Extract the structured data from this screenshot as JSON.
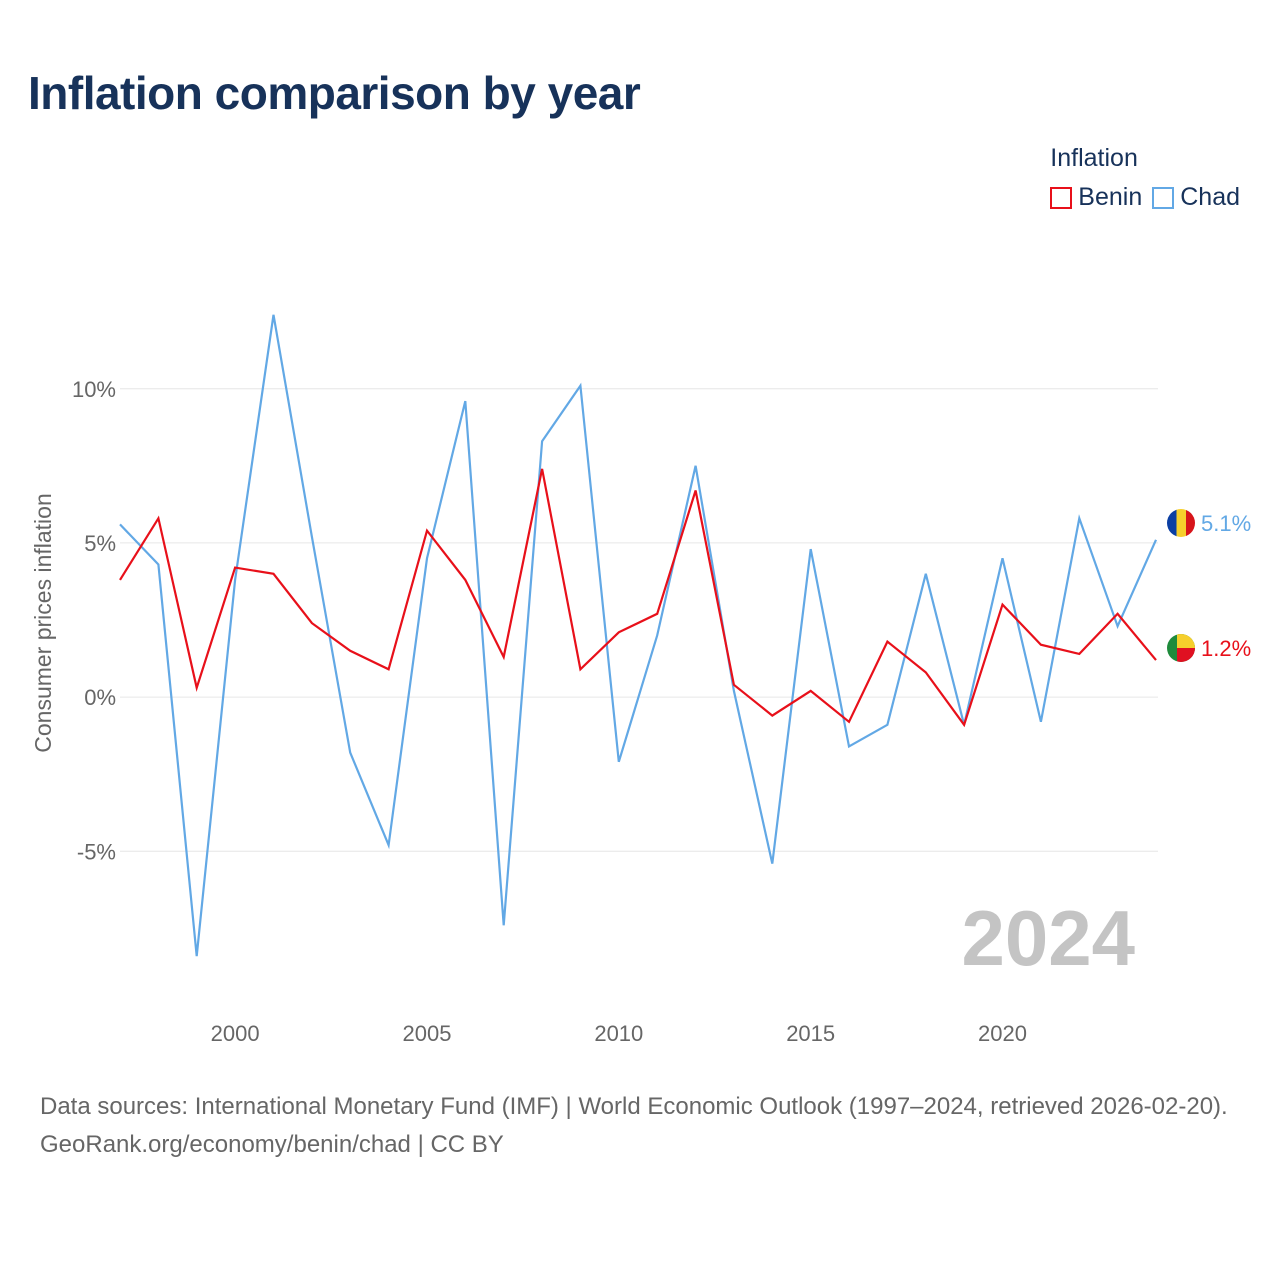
{
  "title": "Inflation comparison by year",
  "legend": {
    "title": "Inflation",
    "items": [
      {
        "label": "Benin",
        "color": "#e8101a"
      },
      {
        "label": "Chad",
        "color": "#62a8e5"
      }
    ]
  },
  "chart_data": {
    "type": "line",
    "title": "Inflation comparison by year",
    "ylabel": "Consumer prices inflation",
    "xlabel": "",
    "ylim": [
      -9.5,
      14.5
    ],
    "xlim": [
      1997,
      2024
    ],
    "y_ticks": [
      10,
      5,
      0,
      -5
    ],
    "y_tick_labels": [
      "10%",
      "5%",
      "0%",
      "-5%"
    ],
    "x_ticks": [
      2000,
      2005,
      2010,
      2015,
      2020
    ],
    "x_tick_labels": [
      "2000",
      "2005",
      "2010",
      "2015",
      "2020"
    ],
    "x": [
      1997,
      1998,
      1999,
      2000,
      2001,
      2002,
      2003,
      2004,
      2005,
      2006,
      2007,
      2008,
      2009,
      2010,
      2011,
      2012,
      2013,
      2014,
      2015,
      2016,
      2017,
      2018,
      2019,
      2020,
      2021,
      2022,
      2023,
      2024
    ],
    "series": [
      {
        "name": "Chad",
        "color": "#62a8e5",
        "values": [
          5.6,
          4.3,
          -8.4,
          3.8,
          12.4,
          5.2,
          -1.8,
          -4.8,
          4.5,
          9.6,
          -7.4,
          8.3,
          10.1,
          -2.1,
          2.0,
          7.5,
          0.2,
          -5.4,
          4.8,
          -1.6,
          -0.9,
          4.0,
          -0.9,
          4.5,
          -0.8,
          5.8,
          2.3,
          5.1
        ],
        "end_label": "5.1%"
      },
      {
        "name": "Benin",
        "color": "#e8101a",
        "values": [
          3.8,
          5.8,
          0.3,
          4.2,
          4.0,
          2.4,
          1.5,
          0.9,
          5.4,
          3.8,
          1.3,
          7.4,
          0.9,
          2.1,
          2.7,
          6.7,
          0.4,
          -0.6,
          0.2,
          -0.8,
          1.8,
          0.8,
          -0.9,
          3.0,
          1.7,
          1.4,
          2.7,
          1.2
        ],
        "end_label": "1.2%"
      }
    ],
    "year_watermark": "2024"
  },
  "footer": {
    "source": "Data sources: International Monetary Fund (IMF) | World Economic Outlook (1997–2024, retrieved 2026-02-20).",
    "credit": "GeoRank.org/economy/benin/chad | CC BY"
  }
}
